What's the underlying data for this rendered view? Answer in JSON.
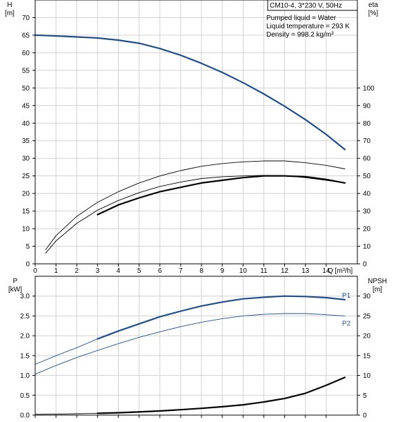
{
  "chart_data": [
    {
      "id": "top",
      "type": "line",
      "legend": {
        "title": "CM10-4, 3*230 V, 50Hz",
        "lines": [
          "Pumped liquid = Water",
          "Liquid temperature = 293 K",
          "Density = 998.2 kg/m³"
        ]
      },
      "y_left": {
        "label": "H",
        "unit": "[m]",
        "range": [
          0,
          75
        ],
        "ticks": [
          0,
          5,
          10,
          15,
          20,
          25,
          30,
          35,
          40,
          45,
          50,
          55,
          60,
          65,
          70
        ]
      },
      "y_right": {
        "label": "eta",
        "unit": "[%]",
        "range": [
          0,
          150
        ],
        "ticks": [
          0,
          10,
          20,
          30,
          40,
          50,
          60,
          70,
          80,
          90,
          100
        ]
      },
      "x": {
        "label": "Q [m³/h]",
        "range": [
          0,
          15.5
        ],
        "ticks": [
          0,
          1,
          2,
          3,
          4,
          5,
          6,
          7,
          8,
          9,
          10,
          11,
          12,
          13,
          14
        ]
      },
      "series": [
        {
          "axis": "left",
          "color": "#1f4e8c",
          "width": 2.2,
          "x": [
            0,
            1,
            2,
            3,
            4,
            5,
            6,
            7,
            8,
            9,
            10,
            11,
            12,
            13,
            14,
            14.9
          ],
          "y": [
            65,
            64.8,
            64.5,
            64.2,
            63.6,
            62.7,
            61.2,
            59.3,
            57,
            54.4,
            51.5,
            48.3,
            44.8,
            41,
            36.8,
            32.5
          ]
        },
        {
          "axis": "right",
          "color": "#000000",
          "width": 0.9,
          "x": [
            0.5,
            1,
            2,
            3,
            4,
            5,
            6,
            7,
            8,
            9,
            10,
            11,
            12,
            13,
            14,
            14.9
          ],
          "y": [
            8,
            16,
            27,
            35,
            41,
            46,
            50,
            53,
            55.5,
            57,
            58,
            58.5,
            58.5,
            57.5,
            56,
            54
          ]
        },
        {
          "axis": "right",
          "color": "#000000",
          "width": 0.9,
          "x": [
            0.5,
            1,
            2,
            3,
            4,
            5,
            6,
            7,
            8,
            9,
            10,
            11,
            12,
            13,
            14,
            14.9
          ],
          "y": [
            6,
            13,
            23,
            30.5,
            36,
            40.5,
            44,
            46.5,
            48.5,
            49.5,
            50,
            50.3,
            50.2,
            49,
            47.5,
            46
          ]
        },
        {
          "axis": "right",
          "color": "#000000",
          "width": 2.2,
          "x": [
            3,
            4,
            5,
            6,
            7,
            8,
            9,
            10,
            11,
            12,
            13,
            14,
            14.9
          ],
          "y": [
            28,
            33.5,
            37.5,
            41,
            43.5,
            46,
            47.5,
            49,
            50,
            50,
            49.5,
            48,
            46
          ]
        }
      ]
    },
    {
      "id": "bottom",
      "type": "line",
      "y_left": {
        "label": "P",
        "unit": "[kW]",
        "range": [
          0,
          3.5
        ],
        "ticks": [
          0.0,
          0.5,
          1.0,
          1.5,
          2.0,
          2.5,
          3.0
        ],
        "tick_labels": [
          "0.0",
          "0.5",
          "1.0",
          "1.5",
          "2.0",
          "2.5",
          "3.0"
        ]
      },
      "y_right": {
        "label": "NPSH",
        "unit": "[m]",
        "range": [
          0,
          35
        ],
        "ticks": [
          0,
          5,
          10,
          15,
          20,
          25,
          30
        ]
      },
      "x": {
        "range": [
          0,
          15.5
        ],
        "ticks": [
          0,
          1,
          2,
          3,
          4,
          5,
          6,
          7,
          8,
          9,
          10,
          11,
          12,
          13,
          14
        ]
      },
      "series": [
        {
          "axis": "left",
          "color": "#1f4e8c",
          "width": 0.9,
          "extend": true,
          "x": [
            0,
            1,
            2,
            3
          ],
          "y": [
            1.28,
            1.5,
            1.7,
            1.92
          ]
        },
        {
          "axis": "left",
          "color": "#1f4e8c",
          "width": 2.2,
          "name": "P1",
          "x": [
            3,
            4,
            5,
            6,
            7,
            8,
            9,
            10,
            11,
            12,
            13,
            14,
            14.9
          ],
          "y": [
            1.92,
            2.12,
            2.3,
            2.48,
            2.62,
            2.75,
            2.85,
            2.93,
            2.97,
            3.0,
            2.99,
            2.96,
            2.91
          ]
        },
        {
          "axis": "left",
          "color": "#1f4e8c",
          "width": 0.9,
          "name": "P2",
          "x": [
            0,
            1,
            2,
            3,
            4,
            5,
            6,
            7,
            8,
            9,
            10,
            11,
            12,
            13,
            14,
            14.9
          ],
          "y": [
            1.03,
            1.25,
            1.45,
            1.63,
            1.8,
            1.96,
            2.1,
            2.23,
            2.34,
            2.43,
            2.5,
            2.54,
            2.56,
            2.56,
            2.53,
            2.5
          ]
        },
        {
          "axis": "right",
          "color": "#000000",
          "width": 0.9,
          "x": [
            0,
            1,
            2,
            3
          ],
          "y": [
            0.2,
            0.25,
            0.35,
            0.45
          ]
        },
        {
          "axis": "right",
          "color": "#000000",
          "width": 2.2,
          "x": [
            3,
            4,
            5,
            6,
            7,
            8,
            9,
            10,
            11,
            12,
            13,
            14,
            14.9
          ],
          "y": [
            0.45,
            0.6,
            0.8,
            1.05,
            1.35,
            1.7,
            2.1,
            2.6,
            3.3,
            4.2,
            5.5,
            7.5,
            9.5
          ]
        }
      ]
    }
  ]
}
